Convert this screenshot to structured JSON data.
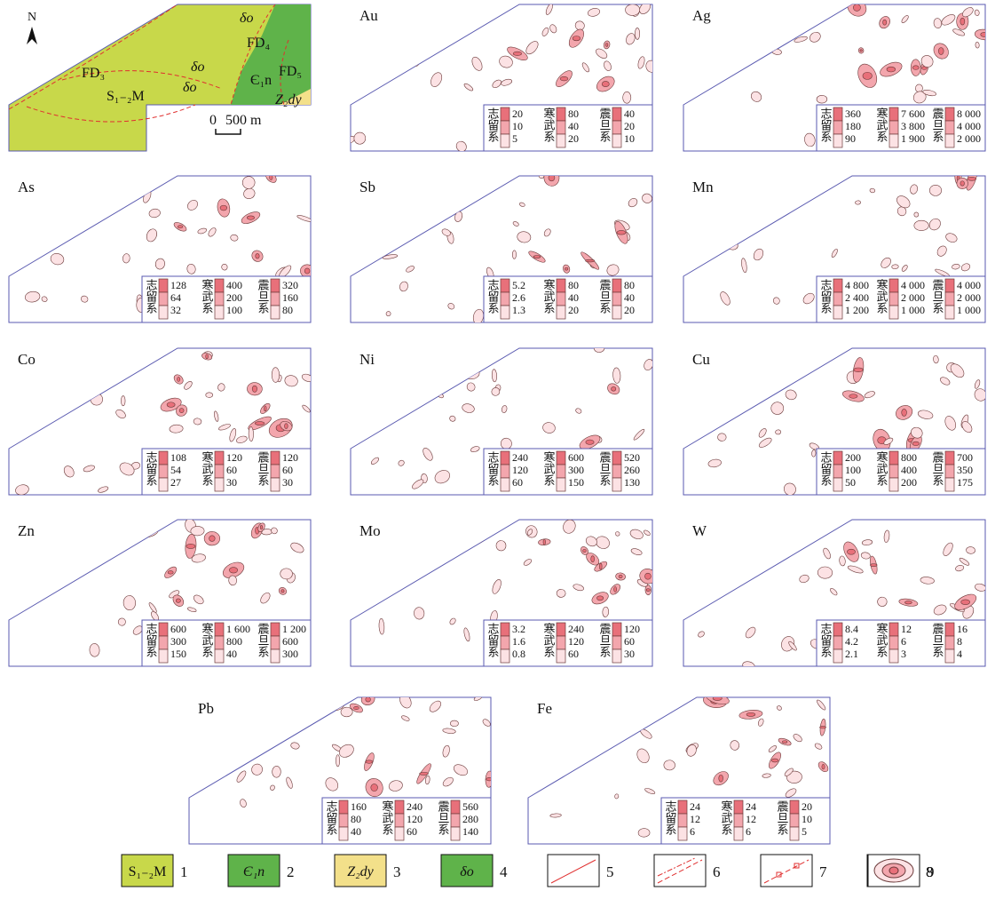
{
  "geology_map": {
    "north": "N",
    "labels": [
      "δo",
      "FD₄",
      "FD₃",
      "δo",
      "δo",
      "Є₁n",
      "FD₅",
      "S₁₋₂M",
      "Z₂dy"
    ],
    "scale": [
      "0",
      "500 m"
    ]
  },
  "panels": [
    {
      "element": "Au",
      "legend": [
        {
          "system": "志留系",
          "values": [
            "20",
            "10",
            "5"
          ]
        },
        {
          "system": "寒武系",
          "values": [
            "80",
            "40",
            "20"
          ]
        },
        {
          "system": "震旦系",
          "values": [
            "40",
            "20",
            "10"
          ]
        }
      ]
    },
    {
      "element": "Ag",
      "legend": [
        {
          "system": "志留系",
          "values": [
            "360",
            "180",
            "90"
          ]
        },
        {
          "system": "寒武系",
          "values": [
            "7 600",
            "3 800",
            "1 900"
          ]
        },
        {
          "system": "震旦系",
          "values": [
            "8 000",
            "4 000",
            "2 000"
          ]
        }
      ]
    },
    {
      "element": "As",
      "legend": [
        {
          "system": "志留系",
          "values": [
            "128",
            "64",
            "32"
          ]
        },
        {
          "system": "寒武系",
          "values": [
            "400",
            "200",
            "100"
          ]
        },
        {
          "system": "震旦系",
          "values": [
            "320",
            "160",
            "80"
          ]
        }
      ]
    },
    {
      "element": "Sb",
      "legend": [
        {
          "system": "志留系",
          "values": [
            "5.2",
            "2.6",
            "1.3"
          ]
        },
        {
          "system": "寒武系",
          "values": [
            "80",
            "40",
            "20"
          ]
        },
        {
          "system": "震旦系",
          "values": [
            "80",
            "40",
            "20"
          ]
        }
      ]
    },
    {
      "element": "Mn",
      "legend": [
        {
          "system": "志留系",
          "values": [
            "4 800",
            "2 400",
            "1 200"
          ]
        },
        {
          "system": "寒武系",
          "values": [
            "4 000",
            "2 000",
            "1 000"
          ]
        },
        {
          "system": "震旦系",
          "values": [
            "4 000",
            "2 000",
            "1 000"
          ]
        }
      ]
    },
    {
      "element": "Co",
      "legend": [
        {
          "system": "志留系",
          "values": [
            "108",
            "54",
            "27"
          ]
        },
        {
          "system": "寒武系",
          "values": [
            "120",
            "60",
            "30"
          ]
        },
        {
          "system": "震旦系",
          "values": [
            "120",
            "60",
            "30"
          ]
        }
      ]
    },
    {
      "element": "Ni",
      "legend": [
        {
          "system": "志留系",
          "values": [
            "240",
            "120",
            "60"
          ]
        },
        {
          "system": "寒武系",
          "values": [
            "600",
            "300",
            "150"
          ]
        },
        {
          "system": "震旦系",
          "values": [
            "520",
            "260",
            "130"
          ]
        }
      ]
    },
    {
      "element": "Cu",
      "legend": [
        {
          "system": "志留系",
          "values": [
            "200",
            "100",
            "50"
          ]
        },
        {
          "system": "寒武系",
          "values": [
            "800",
            "400",
            "200"
          ]
        },
        {
          "system": "震旦系",
          "values": [
            "700",
            "350",
            "175"
          ]
        }
      ]
    },
    {
      "element": "Zn",
      "legend": [
        {
          "system": "志留系",
          "values": [
            "600",
            "300",
            "150"
          ]
        },
        {
          "system": "寒武系",
          "values": [
            "1 600",
            "800",
            "40"
          ]
        },
        {
          "system": "震旦系",
          "values": [
            "1 200",
            "600",
            "300"
          ]
        }
      ]
    },
    {
      "element": "Mo",
      "legend": [
        {
          "system": "志留系",
          "values": [
            "3.2",
            "1.6",
            "0.8"
          ]
        },
        {
          "system": "寒武系",
          "values": [
            "240",
            "120",
            "60"
          ]
        },
        {
          "system": "震旦系",
          "values": [
            "120",
            "60",
            "30"
          ]
        }
      ]
    },
    {
      "element": "W",
      "legend": [
        {
          "system": "志留系",
          "values": [
            "8.4",
            "4.2",
            "2.1"
          ]
        },
        {
          "system": "寒武系",
          "values": [
            "12",
            "6",
            "3"
          ]
        },
        {
          "system": "震旦系",
          "values": [
            "16",
            "8",
            "4"
          ]
        }
      ]
    },
    {
      "element": "Pb",
      "legend": [
        {
          "system": "志留系",
          "values": [
            "160",
            "80",
            "40"
          ]
        },
        {
          "system": "寒武系",
          "values": [
            "240",
            "120",
            "60"
          ]
        },
        {
          "system": "震旦系",
          "values": [
            "560",
            "280",
            "140"
          ]
        }
      ]
    },
    {
      "element": "Fe",
      "legend": [
        {
          "system": "志留系",
          "values": [
            "24",
            "12",
            "6"
          ]
        },
        {
          "system": "寒武系",
          "values": [
            "24",
            "12",
            "6"
          ]
        },
        {
          "system": "震旦系",
          "values": [
            "20",
            "10",
            "5"
          ]
        }
      ]
    }
  ],
  "key": {
    "symbols": [
      "S₁₋₂M",
      "Є₁n",
      "Z₂dy",
      "δo"
    ],
    "numbers": [
      "1",
      "2",
      "3",
      "4",
      "5",
      "6",
      "7",
      "8",
      "9"
    ]
  }
}
